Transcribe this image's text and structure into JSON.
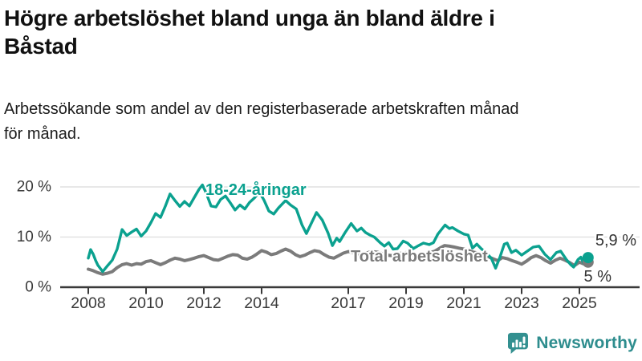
{
  "header": {
    "title_lines": [
      "Högre arbetslöshet bland unga än bland äldre i",
      "Båstad"
    ],
    "subtitle_lines": [
      "Arbetssökande som andel av den registerbaserade arbetskraften månad",
      "för månad."
    ]
  },
  "branding": {
    "logo_text": "Newsworthy",
    "logo_color": "#2e8d8e",
    "icon_color": "#339090"
  },
  "chart_data": {
    "type": "line",
    "xlabel": "",
    "ylabel": "",
    "unit": "%",
    "grid": "horizontal",
    "xlim": [
      2007.05,
      2027.1
    ],
    "ylim": [
      0,
      22.9
    ],
    "y_ticks": [
      {
        "value": 20,
        "label": "20 %"
      },
      {
        "value": 10,
        "label": "10 %"
      },
      {
        "value": 0,
        "label": "0 %"
      }
    ],
    "x_ticks": [
      {
        "year": 2008,
        "label": "2008"
      },
      {
        "year": 2010,
        "label": "2010"
      },
      {
        "year": 2012,
        "label": "2012"
      },
      {
        "year": 2014,
        "label": "2014"
      },
      {
        "year": 2017,
        "label": "2017"
      },
      {
        "year": 2019,
        "label": "2019"
      },
      {
        "year": 2021,
        "label": "2021"
      },
      {
        "year": 2023,
        "label": "2023"
      },
      {
        "year": 2025,
        "label": "2025"
      }
    ],
    "axis_color": "#3a3a3a",
    "grid_color": "#e1e1e1",
    "series": [
      {
        "name": "18-24-åringar",
        "color": "#0ba18f",
        "end_label": "5,9 %",
        "end_value": 5.9,
        "points": [
          [
            2008.0,
            5.8
          ],
          [
            2008.08,
            7.5
          ],
          [
            2008.17,
            6.6
          ],
          [
            2008.25,
            5.4
          ],
          [
            2008.33,
            4.4
          ],
          [
            2008.5,
            3.1
          ],
          [
            2008.67,
            4.3
          ],
          [
            2008.83,
            5.4
          ],
          [
            2009.0,
            7.6
          ],
          [
            2009.17,
            11.5
          ],
          [
            2009.33,
            10.3
          ],
          [
            2009.5,
            11.0
          ],
          [
            2009.67,
            11.6
          ],
          [
            2009.83,
            10.2
          ],
          [
            2010.0,
            11.2
          ],
          [
            2010.17,
            12.9
          ],
          [
            2010.33,
            14.7
          ],
          [
            2010.5,
            13.9
          ],
          [
            2010.67,
            16.2
          ],
          [
            2010.83,
            18.6
          ],
          [
            2011.0,
            17.3
          ],
          [
            2011.17,
            16.1
          ],
          [
            2011.33,
            17.1
          ],
          [
            2011.5,
            16.2
          ],
          [
            2011.67,
            17.9
          ],
          [
            2011.83,
            19.5
          ],
          [
            2011.95,
            20.4
          ],
          [
            2012.08,
            18.8
          ],
          [
            2012.25,
            16.2
          ],
          [
            2012.42,
            16.0
          ],
          [
            2012.58,
            17.5
          ],
          [
            2012.75,
            18.2
          ],
          [
            2012.92,
            16.8
          ],
          [
            2013.08,
            15.4
          ],
          [
            2013.25,
            16.4
          ],
          [
            2013.42,
            15.6
          ],
          [
            2013.58,
            16.9
          ],
          [
            2013.75,
            17.8
          ],
          [
            2013.92,
            19.0
          ],
          [
            2014.08,
            17.4
          ],
          [
            2014.25,
            15.2
          ],
          [
            2014.42,
            14.6
          ],
          [
            2014.58,
            15.8
          ],
          [
            2014.83,
            17.3
          ],
          [
            2015.0,
            16.4
          ],
          [
            2015.2,
            15.6
          ],
          [
            2015.4,
            12.4
          ],
          [
            2015.55,
            10.7
          ],
          [
            2015.7,
            12.5
          ],
          [
            2015.9,
            14.9
          ],
          [
            2016.1,
            13.4
          ],
          [
            2016.3,
            10.8
          ],
          [
            2016.45,
            8.3
          ],
          [
            2016.6,
            9.8
          ],
          [
            2016.7,
            9.1
          ],
          [
            2016.9,
            11.0
          ],
          [
            2017.1,
            12.7
          ],
          [
            2017.3,
            11.2
          ],
          [
            2017.45,
            11.8
          ],
          [
            2017.6,
            10.9
          ],
          [
            2017.75,
            10.4
          ],
          [
            2017.9,
            10.0
          ],
          [
            2018.1,
            8.9
          ],
          [
            2018.25,
            8.2
          ],
          [
            2018.4,
            8.9
          ],
          [
            2018.55,
            7.6
          ],
          [
            2018.7,
            7.7
          ],
          [
            2018.9,
            9.2
          ],
          [
            2019.05,
            8.8
          ],
          [
            2019.25,
            7.7
          ],
          [
            2019.4,
            8.2
          ],
          [
            2019.6,
            8.8
          ],
          [
            2019.8,
            8.5
          ],
          [
            2019.95,
            8.9
          ],
          [
            2020.1,
            10.6
          ],
          [
            2020.35,
            12.4
          ],
          [
            2020.5,
            11.7
          ],
          [
            2020.6,
            11.9
          ],
          [
            2020.8,
            11.2
          ],
          [
            2021.0,
            10.6
          ],
          [
            2021.15,
            10.4
          ],
          [
            2021.3,
            7.8
          ],
          [
            2021.45,
            8.6
          ],
          [
            2021.6,
            7.7
          ],
          [
            2021.75,
            7.0
          ],
          [
            2021.95,
            5.8
          ],
          [
            2022.1,
            3.8
          ],
          [
            2022.25,
            6.0
          ],
          [
            2022.4,
            8.6
          ],
          [
            2022.5,
            8.8
          ],
          [
            2022.65,
            6.9
          ],
          [
            2022.8,
            7.4
          ],
          [
            2023.0,
            6.4
          ],
          [
            2023.2,
            7.2
          ],
          [
            2023.4,
            8.0
          ],
          [
            2023.6,
            8.2
          ],
          [
            2023.8,
            6.6
          ],
          [
            2024.0,
            5.5
          ],
          [
            2024.2,
            6.9
          ],
          [
            2024.35,
            7.2
          ],
          [
            2024.55,
            5.5
          ],
          [
            2024.7,
            4.5
          ],
          [
            2024.8,
            4.0
          ],
          [
            2024.95,
            5.5
          ],
          [
            2025.05,
            6.0
          ],
          [
            2025.15,
            4.7
          ],
          [
            2025.3,
            5.9
          ]
        ]
      },
      {
        "name": "Total arbetslöshet",
        "color": "#7b7b7b",
        "end_label": "5 %",
        "end_value": 5,
        "points": [
          [
            2008.0,
            3.6
          ],
          [
            2008.17,
            3.3
          ],
          [
            2008.33,
            2.9
          ],
          [
            2008.5,
            2.6
          ],
          [
            2008.67,
            2.8
          ],
          [
            2008.83,
            3.1
          ],
          [
            2009.0,
            3.9
          ],
          [
            2009.17,
            4.5
          ],
          [
            2009.33,
            4.7
          ],
          [
            2009.5,
            4.4
          ],
          [
            2009.67,
            4.7
          ],
          [
            2009.83,
            4.6
          ],
          [
            2010.0,
            5.1
          ],
          [
            2010.17,
            5.3
          ],
          [
            2010.33,
            4.9
          ],
          [
            2010.5,
            4.5
          ],
          [
            2010.67,
            4.9
          ],
          [
            2010.83,
            5.4
          ],
          [
            2011.0,
            5.8
          ],
          [
            2011.17,
            5.6
          ],
          [
            2011.33,
            5.3
          ],
          [
            2011.5,
            5.5
          ],
          [
            2011.67,
            5.8
          ],
          [
            2011.83,
            6.1
          ],
          [
            2012.0,
            6.3
          ],
          [
            2012.17,
            5.9
          ],
          [
            2012.33,
            5.5
          ],
          [
            2012.5,
            5.4
          ],
          [
            2012.67,
            5.8
          ],
          [
            2012.83,
            6.2
          ],
          [
            2013.0,
            6.5
          ],
          [
            2013.17,
            6.4
          ],
          [
            2013.33,
            5.8
          ],
          [
            2013.5,
            5.6
          ],
          [
            2013.67,
            6.0
          ],
          [
            2013.83,
            6.6
          ],
          [
            2014.0,
            7.3
          ],
          [
            2014.17,
            7.0
          ],
          [
            2014.33,
            6.5
          ],
          [
            2014.5,
            6.7
          ],
          [
            2014.67,
            7.2
          ],
          [
            2014.83,
            7.6
          ],
          [
            2015.0,
            7.2
          ],
          [
            2015.17,
            6.5
          ],
          [
            2015.33,
            6.1
          ],
          [
            2015.5,
            6.4
          ],
          [
            2015.67,
            6.9
          ],
          [
            2015.83,
            7.3
          ],
          [
            2016.0,
            7.1
          ],
          [
            2016.17,
            6.5
          ],
          [
            2016.33,
            6.0
          ],
          [
            2016.5,
            5.8
          ],
          [
            2016.67,
            6.3
          ],
          [
            2016.83,
            6.8
          ],
          [
            2017.0,
            7.1
          ],
          [
            2017.17,
            6.9
          ],
          [
            2017.33,
            6.5
          ],
          [
            2017.5,
            6.6
          ],
          [
            2017.67,
            6.9
          ],
          [
            2017.83,
            7.1
          ],
          [
            2018.0,
            7.0
          ],
          [
            2018.17,
            6.7
          ],
          [
            2018.33,
            6.4
          ],
          [
            2018.5,
            6.3
          ],
          [
            2018.67,
            6.5
          ],
          [
            2018.83,
            6.8
          ],
          [
            2019.0,
            6.9
          ],
          [
            2019.17,
            6.6
          ],
          [
            2019.33,
            6.3
          ],
          [
            2019.5,
            6.4
          ],
          [
            2019.67,
            6.6
          ],
          [
            2019.83,
            6.9
          ],
          [
            2020.0,
            7.2
          ],
          [
            2020.17,
            7.8
          ],
          [
            2020.33,
            8.3
          ],
          [
            2020.5,
            8.2
          ],
          [
            2020.67,
            8.0
          ],
          [
            2020.83,
            7.8
          ],
          [
            2021.0,
            7.6
          ],
          [
            2021.17,
            7.3
          ],
          [
            2021.33,
            7.0
          ],
          [
            2021.5,
            6.8
          ],
          [
            2021.67,
            6.5
          ],
          [
            2021.83,
            6.1
          ],
          [
            2022.0,
            5.7
          ],
          [
            2022.17,
            5.3
          ],
          [
            2022.33,
            5.9
          ],
          [
            2022.5,
            5.7
          ],
          [
            2022.67,
            5.3
          ],
          [
            2022.83,
            5.0
          ],
          [
            2023.0,
            4.6
          ],
          [
            2023.17,
            5.2
          ],
          [
            2023.33,
            5.9
          ],
          [
            2023.5,
            6.3
          ],
          [
            2023.67,
            5.9
          ],
          [
            2023.83,
            5.3
          ],
          [
            2024.0,
            4.8
          ],
          [
            2024.17,
            5.4
          ],
          [
            2024.33,
            5.8
          ],
          [
            2024.5,
            5.4
          ],
          [
            2024.67,
            4.9
          ],
          [
            2024.83,
            4.3
          ],
          [
            2025.0,
            5.0
          ],
          [
            2025.17,
            4.6
          ],
          [
            2025.3,
            5.0
          ]
        ]
      }
    ]
  }
}
